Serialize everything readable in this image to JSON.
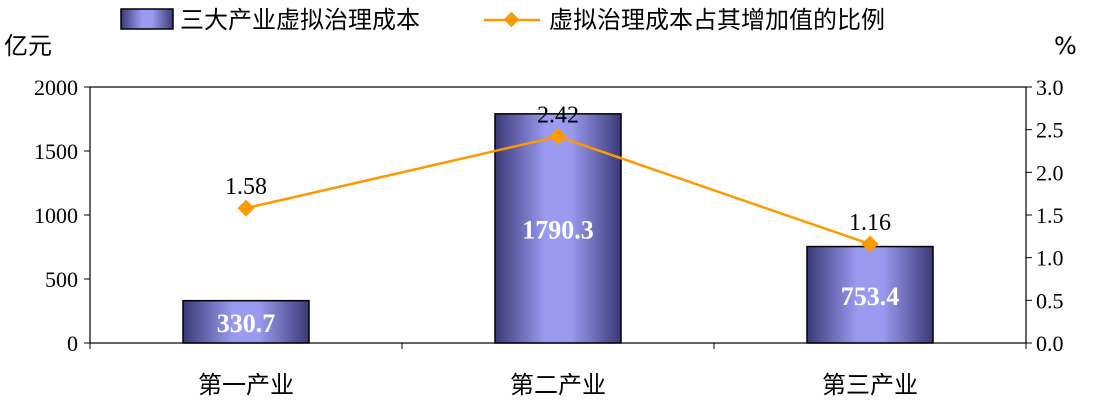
{
  "chart_data": {
    "type": "bar",
    "categories": [
      "第一产业",
      "第二产业",
      "第三产业"
    ],
    "left_axis_unit": "亿元",
    "right_axis_unit": "%",
    "ylim_left": [
      0,
      2000
    ],
    "ylim_right": [
      0,
      3.0
    ],
    "left_ticks": [
      "0",
      "500",
      "1000",
      "1500",
      "2000"
    ],
    "right_ticks": [
      "0.0",
      "0.5",
      "1.0",
      "1.5",
      "2.0",
      "2.5",
      "3.0"
    ],
    "legend_position": "top",
    "series": [
      {
        "name": "三大产业虚拟治理成本",
        "type": "bar",
        "axis": "left",
        "values": [
          330.7,
          1790.3,
          753.4
        ],
        "labels": [
          "330.7",
          "1790.3",
          "753.4"
        ],
        "color": "#8080e0"
      },
      {
        "name": "虚拟治理成本占其增加值的比例",
        "type": "line",
        "axis": "right",
        "values": [
          1.58,
          2.42,
          1.16
        ],
        "labels": [
          "1.58",
          "2.42",
          "1.16"
        ],
        "color": "#ff9900"
      }
    ]
  }
}
